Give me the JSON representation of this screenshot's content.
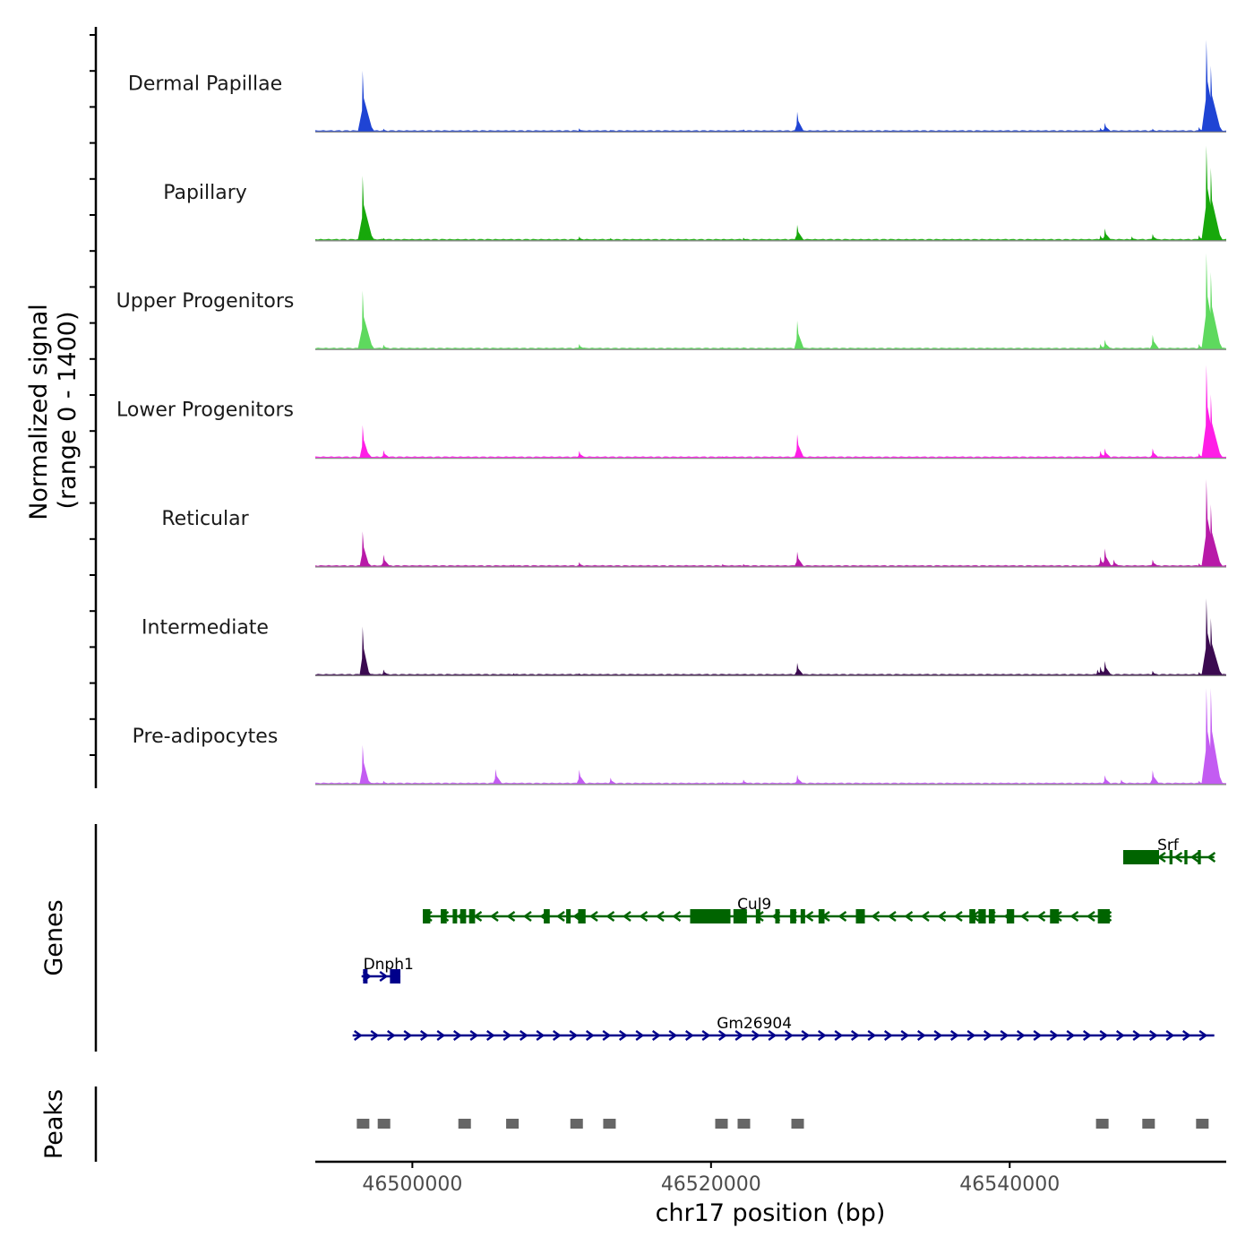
{
  "chart_data": {
    "type": "area",
    "title": "",
    "ylabel": "Normalized signal",
    "ylabel_range": "(range 0 - 1400)",
    "xlabel": "chr17 position (bp)",
    "chromosome": "chr17",
    "xlim": [
      46493500,
      46554500
    ],
    "ylim": [
      0,
      1400
    ],
    "x_ticks": [
      46500000,
      46520000,
      46540000
    ],
    "x_tick_labels": [
      "46500000",
      "46520000",
      "46540000"
    ],
    "tracks_label": "Genes",
    "peaks_label": "Peaks",
    "series": [
      {
        "name": "Dermal Papillae",
        "color": "#1f44d4",
        "peaks": [
          [
            46496700,
            1000
          ],
          [
            46496900,
            280
          ],
          [
            46498100,
            55
          ],
          [
            46511200,
            60
          ],
          [
            46513300,
            35
          ],
          [
            46522200,
            45
          ],
          [
            46525800,
            330
          ],
          [
            46532000,
            25
          ],
          [
            46546400,
            150
          ],
          [
            46546100,
            70
          ],
          [
            46549600,
            55
          ],
          [
            46553200,
            1500
          ],
          [
            46553500,
            1080
          ],
          [
            46552700,
            80
          ]
        ]
      },
      {
        "name": "Papillary",
        "color": "#17a80b",
        "peaks": [
          [
            46496700,
            1060
          ],
          [
            46496900,
            230
          ],
          [
            46498100,
            45
          ],
          [
            46511200,
            70
          ],
          [
            46513300,
            45
          ],
          [
            46520800,
            30
          ],
          [
            46522200,
            50
          ],
          [
            46525800,
            260
          ],
          [
            46546400,
            200
          ],
          [
            46546100,
            90
          ],
          [
            46548200,
            70
          ],
          [
            46549600,
            110
          ],
          [
            46553200,
            1550
          ],
          [
            46553500,
            1190
          ],
          [
            46552700,
            90
          ]
        ]
      },
      {
        "name": "Upper Progenitors",
        "color": "#5ed95e",
        "peaks": [
          [
            46496700,
            960
          ],
          [
            46496900,
            180
          ],
          [
            46498100,
            80
          ],
          [
            46511200,
            90
          ],
          [
            46520800,
            40
          ],
          [
            46522200,
            40
          ],
          [
            46525800,
            470
          ],
          [
            46546400,
            160
          ],
          [
            46546100,
            90
          ],
          [
            46549600,
            240
          ],
          [
            46553200,
            1640
          ],
          [
            46553500,
            1260
          ],
          [
            46552700,
            90
          ]
        ]
      },
      {
        "name": "Lower Progenitors",
        "color": "#ff1ee6",
        "peaks": [
          [
            46496700,
            540
          ],
          [
            46496900,
            200
          ],
          [
            46498100,
            130
          ],
          [
            46511200,
            120
          ],
          [
            46520800,
            35
          ],
          [
            46525800,
            390
          ],
          [
            46546400,
            160
          ],
          [
            46546100,
            120
          ],
          [
            46549600,
            160
          ],
          [
            46553200,
            1520
          ],
          [
            46553500,
            1040
          ],
          [
            46552700,
            80
          ]
        ]
      },
      {
        "name": "Reticular",
        "color": "#b81aa8",
        "peaks": [
          [
            46496700,
            580
          ],
          [
            46496900,
            160
          ],
          [
            46498100,
            200
          ],
          [
            46506800,
            40
          ],
          [
            46511200,
            80
          ],
          [
            46513300,
            25
          ],
          [
            46520800,
            50
          ],
          [
            46522200,
            50
          ],
          [
            46525800,
            250
          ],
          [
            46546400,
            300
          ],
          [
            46546100,
            170
          ],
          [
            46547000,
            120
          ],
          [
            46549600,
            120
          ],
          [
            46553200,
            1430
          ],
          [
            46553500,
            1020
          ],
          [
            46552700,
            60
          ]
        ]
      },
      {
        "name": "Intermediate",
        "color": "#3b0a50",
        "peaks": [
          [
            46496700,
            800
          ],
          [
            46496900,
            150
          ],
          [
            46498100,
            100
          ],
          [
            46506800,
            40
          ],
          [
            46511200,
            40
          ],
          [
            46520800,
            30
          ],
          [
            46522200,
            30
          ],
          [
            46525800,
            210
          ],
          [
            46545900,
            100
          ],
          [
            46546400,
            240
          ],
          [
            46546100,
            150
          ],
          [
            46549600,
            80
          ],
          [
            46553200,
            1260
          ],
          [
            46553500,
            940
          ],
          [
            46552700,
            60
          ]
        ]
      },
      {
        "name": "Pre-adipocytes",
        "color": "#c35cf2",
        "peaks": [
          [
            46496700,
            640
          ],
          [
            46496900,
            160
          ],
          [
            46498100,
            60
          ],
          [
            46505600,
            250
          ],
          [
            46511200,
            240
          ],
          [
            46513300,
            110
          ],
          [
            46520800,
            40
          ],
          [
            46522200,
            80
          ],
          [
            46525800,
            160
          ],
          [
            46546400,
            150
          ],
          [
            46547500,
            80
          ],
          [
            46549600,
            230
          ],
          [
            46553200,
            1640
          ],
          [
            46553500,
            1680
          ],
          [
            46552700,
            60
          ]
        ]
      }
    ],
    "genes": [
      {
        "name": "Srf",
        "strand": "-",
        "color": "#006400",
        "start": 46547600,
        "end": 46553700,
        "exons": [
          [
            46547600,
            46550000
          ],
          [
            46550700,
            46550900
          ],
          [
            46551700,
            46551900
          ],
          [
            46552600,
            46552800
          ]
        ]
      },
      {
        "name": "Cul9",
        "strand": "-",
        "color": "#006400",
        "start": 46500700,
        "end": 46546800,
        "exons": [
          [
            46500700,
            46501200
          ],
          [
            46501900,
            46502300
          ],
          [
            46502700,
            46503000
          ],
          [
            46503200,
            46503600
          ],
          [
            46503800,
            46504200
          ],
          [
            46508800,
            46509200
          ],
          [
            46510300,
            46510600
          ],
          [
            46511100,
            46511600
          ],
          [
            46518600,
            46521300
          ],
          [
            46521500,
            46522400
          ],
          [
            46523000,
            46523300
          ],
          [
            46524300,
            46524600
          ],
          [
            46525300,
            46525700
          ],
          [
            46526000,
            46526300
          ],
          [
            46527200,
            46527600
          ],
          [
            46529700,
            46530300
          ],
          [
            46537300,
            46537700
          ],
          [
            46537900,
            46538400
          ],
          [
            46538600,
            46539000
          ],
          [
            46539800,
            46540300
          ],
          [
            46542700,
            46543300
          ],
          [
            46545900,
            46546700
          ]
        ]
      },
      {
        "name": "Dnph1",
        "strand": "+",
        "color": "#00008b",
        "start": 46496600,
        "end": 46499200,
        "exons": [
          [
            46496700,
            46497000
          ],
          [
            46498500,
            46499200
          ]
        ]
      },
      {
        "name": "Gm26904",
        "strand": "+",
        "color": "#00008b",
        "start": 46496000,
        "end": 46553700,
        "exons": []
      }
    ],
    "peak_regions": [
      46496700,
      46498100,
      46503500,
      46506700,
      46511000,
      46513200,
      46520700,
      46522200,
      46525800,
      46546200,
      46549300,
      46552900
    ]
  }
}
